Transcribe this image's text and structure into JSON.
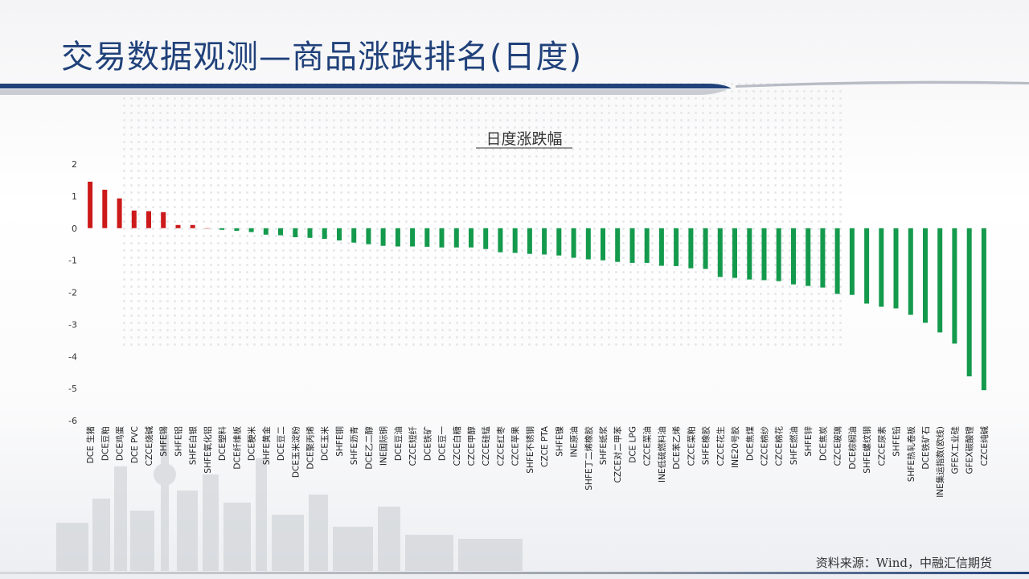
{
  "page": {
    "title": "交易数据观测—商品涨跌排名(日度)"
  },
  "source": "资料来源：Wind，中融汇信期货",
  "colors": {
    "up": "#cc1a1a",
    "down": "#149a4c",
    "title": "#20417a"
  },
  "chart_data": {
    "type": "bar",
    "title": "日度涨跌幅",
    "xlabel": "",
    "ylabel": "",
    "ylim": [
      -6,
      2
    ],
    "yticks": [
      2,
      1,
      0,
      -1,
      -2,
      -3,
      -4,
      -5,
      -6
    ],
    "grid": false,
    "legend": "none",
    "categories": [
      "DCE 生猪",
      "DCE豆粕",
      "DCE鸡蛋",
      "DCE PVC",
      "CZCE烧碱",
      "SHFE锡",
      "SHFE铝",
      "SHFE白银",
      "SHFE氧化铝",
      "DCE塑料",
      "DCE纤维板",
      "DCE粳米",
      "SHFE黄金",
      "DCE豆二",
      "DCE玉米淀粉",
      "DCE聚丙烯",
      "DCE玉米",
      "SHFE铜",
      "SHFE沥青",
      "DCE乙二醇",
      "INE国际铜",
      "DCE豆油",
      "CZCE短纤",
      "DCE铁矿",
      "DCE豆一",
      "CZCE白糖",
      "CZCE甲醇",
      "CZCE硅锰",
      "CZCE红枣",
      "CZCE苹果",
      "SHFE不锈钢",
      "CZCE PTA",
      "SHFE镍",
      "INE原油",
      "SHFE丁二烯橡胶",
      "SHFE纸浆",
      "CZCE对二甲苯",
      "DCE LPG",
      "CZCE菜油",
      "INE低硫燃料油",
      "DCE苯乙烯",
      "CZCE菜粕",
      "SHFE橡胶",
      "CZCE花生",
      "INE20号胶",
      "DCE焦煤",
      "CZCE棉纱",
      "CZCE棉花",
      "SHFE燃油",
      "SHFE锌",
      "DCE焦炭",
      "CZCE玻璃",
      "DCE棕榈油",
      "SHFE螺纹钢",
      "CZCE尿素",
      "SHFE铅",
      "SHFE热轧卷板",
      "DCE铁矿石",
      "INE集运指数(欧线)",
      "GFEX工业硅",
      "GFEX碳酸锂",
      "CZCE纯碱"
    ],
    "values": [
      1.45,
      1.2,
      0.93,
      0.55,
      0.53,
      0.5,
      0.1,
      0.1,
      0,
      -0.05,
      -0.08,
      -0.12,
      -0.2,
      -0.22,
      -0.28,
      -0.3,
      -0.33,
      -0.38,
      -0.45,
      -0.5,
      -0.55,
      -0.57,
      -0.57,
      -0.58,
      -0.6,
      -0.6,
      -0.6,
      -0.65,
      -0.75,
      -0.77,
      -0.8,
      -0.82,
      -0.85,
      -0.92,
      -0.97,
      -1.0,
      -1.05,
      -1.08,
      -1.08,
      -1.17,
      -1.18,
      -1.25,
      -1.27,
      -1.52,
      -1.55,
      -1.6,
      -1.62,
      -1.65,
      -1.75,
      -1.8,
      -1.85,
      -2.05,
      -2.08,
      -2.35,
      -2.45,
      -2.5,
      -2.7,
      -2.95,
      -3.25,
      -3.6,
      -4.62,
      -5.05
    ]
  }
}
